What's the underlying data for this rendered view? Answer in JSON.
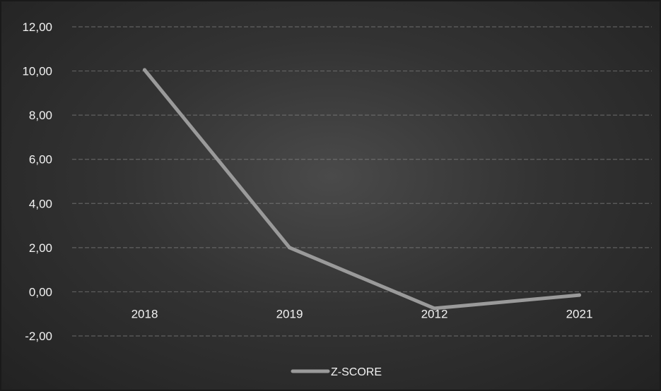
{
  "chart_data": {
    "type": "line",
    "categories": [
      "2018",
      "2019",
      "2012",
      "2021"
    ],
    "series": [
      {
        "name": "Z-SCORE",
        "values": [
          10.05,
          2.0,
          -0.75,
          -0.15
        ],
        "color": "#9a9a9a"
      }
    ],
    "y_ticks": [
      "12,00",
      "10,00",
      "8,00",
      "6,00",
      "4,00",
      "2,00",
      "0,00",
      "-2,00"
    ],
    "y_tick_values": [
      12,
      10,
      8,
      6,
      4,
      2,
      0,
      -2
    ],
    "ylim": [
      -2,
      12
    ],
    "grid": true,
    "legend_position": "bottom-center",
    "title": "",
    "xlabel": "",
    "ylabel": ""
  },
  "colors": {
    "background": "#333333",
    "grid": "#8a8a8a",
    "text": "#f2f2f2",
    "series": "#9a9a9a"
  }
}
